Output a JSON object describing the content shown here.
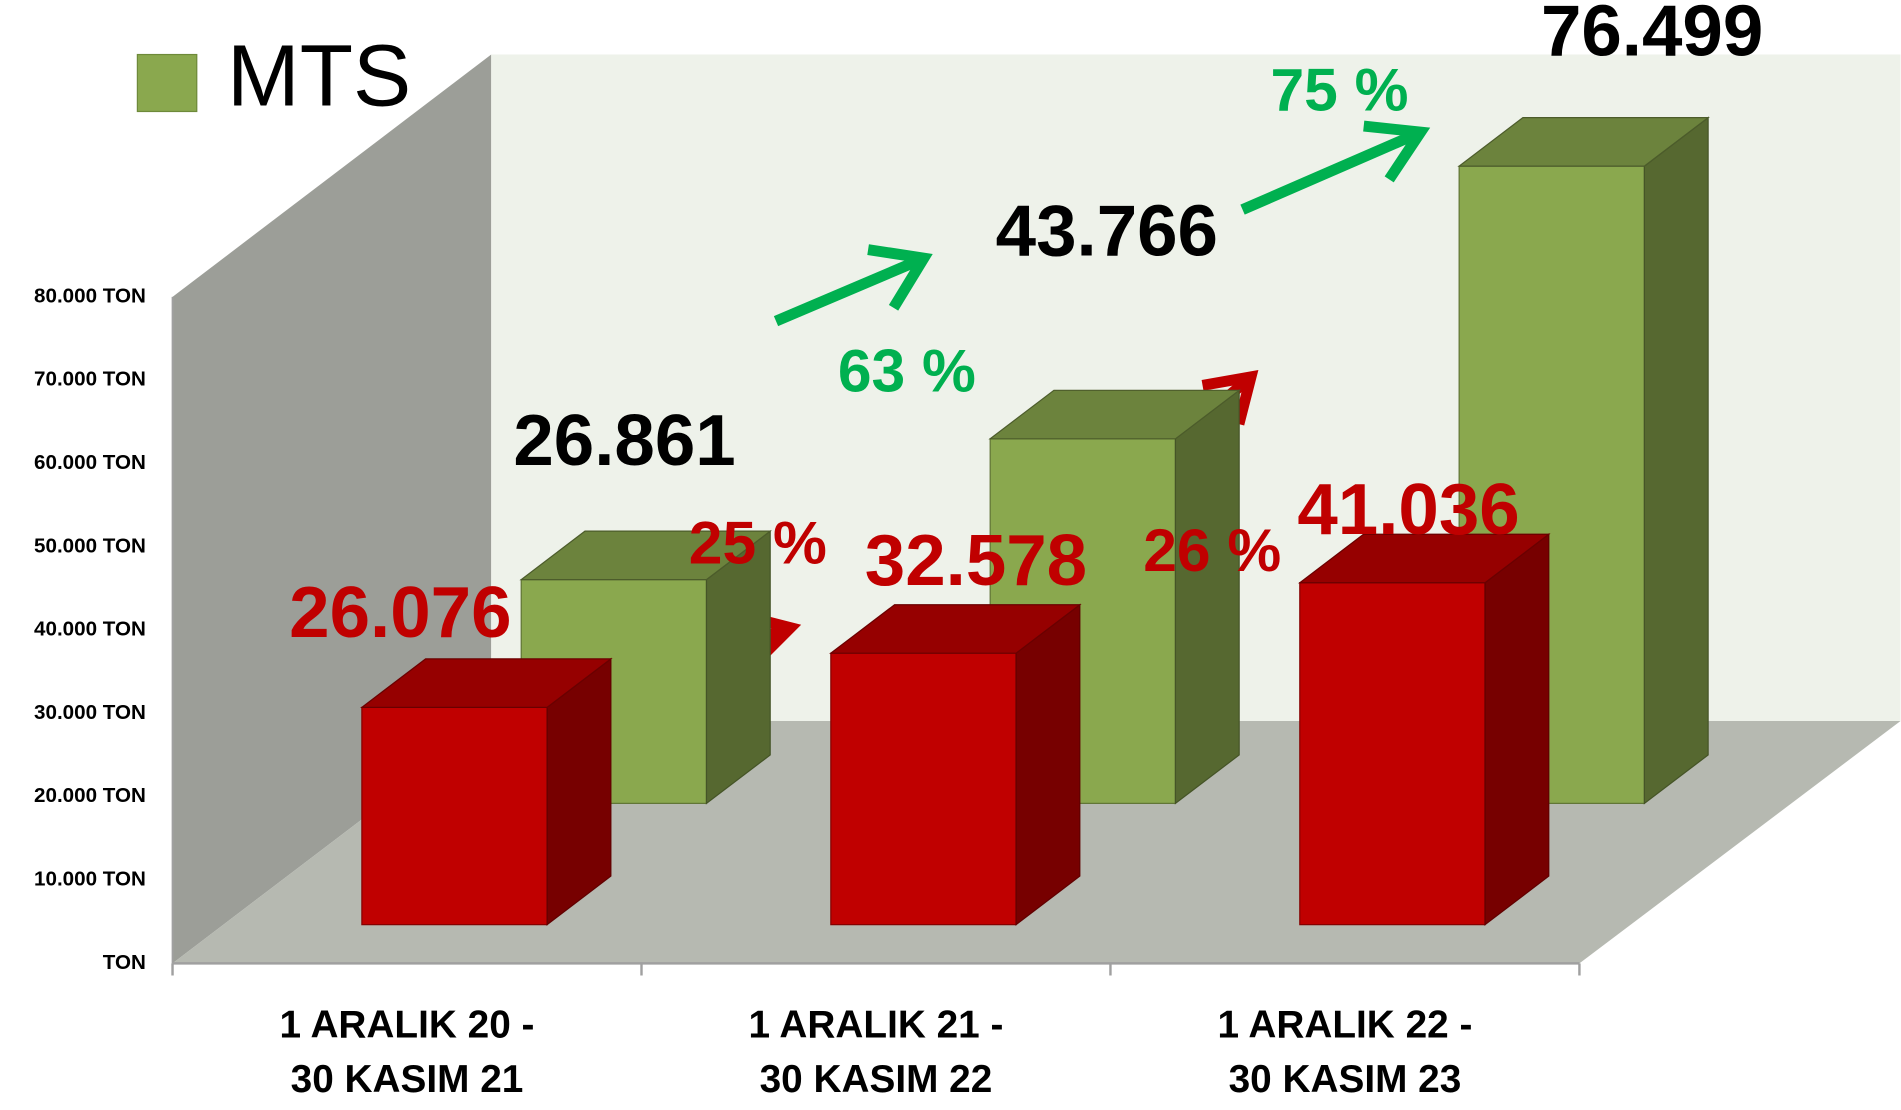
{
  "chart_data": {
    "type": "bar3d",
    "categories": [
      "1 ARALIK 20 -\n30 KASIM 21",
      "1 ARALIK 21 -\n30 KASIM 22",
      "1 ARALIK 22 -\n30 KASIM 23"
    ],
    "series": [
      {
        "color": "#c00000",
        "values": [
          26076,
          32578,
          41036
        ],
        "value_labels": [
          "26.076",
          "32.578",
          "41.036"
        ],
        "label_color": "#c00000"
      },
      {
        "name": "MTS",
        "color": "#8aa84e",
        "values": [
          26861,
          43766,
          76499
        ],
        "value_labels": [
          "26.861",
          "43.766",
          "76.499"
        ],
        "label_color": "#000000"
      }
    ],
    "ylim": [
      0,
      80000
    ],
    "yticks": [
      {
        "value": 0,
        "label": "TON"
      },
      {
        "value": 10000,
        "label": "10.000 TON"
      },
      {
        "value": 20000,
        "label": "20.000 TON"
      },
      {
        "value": 30000,
        "label": "30.000 TON"
      },
      {
        "value": 40000,
        "label": "40.000 TON"
      },
      {
        "value": 50000,
        "label": "50.000 TON"
      },
      {
        "value": 60000,
        "label": "60.000 TON"
      },
      {
        "value": 70000,
        "label": "70.000 TON"
      },
      {
        "value": 80000,
        "label": "80.000 TON"
      }
    ],
    "annotations": [
      {
        "text": "25 %",
        "color": "#c00000"
      },
      {
        "text": "26 %",
        "color": "#c00000"
      },
      {
        "text": "63 %",
        "color": "#00b050"
      },
      {
        "text": "75 %",
        "color": "#00b050"
      }
    ]
  }
}
